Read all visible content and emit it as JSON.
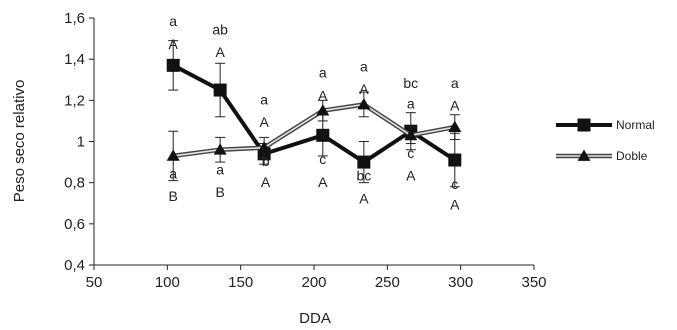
{
  "chart_data": {
    "type": "line",
    "xlabel": "DDA",
    "ylabel": "Peso seco relativo",
    "xlim": [
      50,
      350
    ],
    "ylim": [
      0.4,
      1.6
    ],
    "x_ticks": [
      "50",
      "100",
      "150",
      "200",
      "250",
      "300",
      "350"
    ],
    "y_ticks": [
      "0,4",
      "0,6",
      "0,8",
      "1",
      "1,2",
      "1,4",
      "1,6"
    ],
    "grid": false,
    "legend_position": "right",
    "series": [
      {
        "name": "Normal",
        "marker": "square",
        "style": "solid",
        "color": "#111111",
        "x": [
          104,
          136,
          166,
          206,
          234,
          266,
          296
        ],
        "y": [
          1.37,
          1.25,
          0.94,
          1.03,
          0.9,
          1.05,
          0.91
        ],
        "err": [
          0.12,
          0.13,
          0.05,
          0.1,
          0.1,
          0.09,
          0.13
        ]
      },
      {
        "name": "Doble",
        "marker": "triangle",
        "style": "double",
        "color": "#111111",
        "x": [
          104,
          136,
          166,
          206,
          234,
          266,
          296
        ],
        "y": [
          0.93,
          0.96,
          0.97,
          1.15,
          1.18,
          1.03,
          1.07
        ],
        "err": [
          0.12,
          0.06,
          0.05,
          0.05,
          0.06,
          0.04,
          0.06
        ]
      }
    ],
    "annotations": [
      {
        "text": "a",
        "x": 104,
        "y": 1.56
      },
      {
        "text": "A",
        "x": 104,
        "y": 1.45
      },
      {
        "text": "ab",
        "x": 136,
        "y": 1.52
      },
      {
        "text": "A",
        "x": 136,
        "y": 1.41
      },
      {
        "text": "a",
        "x": 166,
        "y": 1.18
      },
      {
        "text": "A",
        "x": 166,
        "y": 1.07
      },
      {
        "text": "a",
        "x": 206,
        "y": 1.31
      },
      {
        "text": "A",
        "x": 206,
        "y": 1.2
      },
      {
        "text": "a",
        "x": 234,
        "y": 1.34
      },
      {
        "text": "A",
        "x": 234,
        "y": 1.23
      },
      {
        "text": "bc",
        "x": 266,
        "y": 1.26
      },
      {
        "text": "a",
        "x": 266,
        "y": 1.16
      },
      {
        "text": "a",
        "x": 296,
        "y": 1.26
      },
      {
        "text": "A",
        "x": 296,
        "y": 1.15
      },
      {
        "text": "a",
        "x": 104,
        "y": 0.82
      },
      {
        "text": "B",
        "x": 104,
        "y": 0.71
      },
      {
        "text": "a",
        "x": 136,
        "y": 0.84
      },
      {
        "text": "B",
        "x": 136,
        "y": 0.73
      },
      {
        "text": "b",
        "x": 167,
        "y": 0.88
      },
      {
        "text": "A",
        "x": 167,
        "y": 0.78
      },
      {
        "text": "c",
        "x": 206,
        "y": 0.89
      },
      {
        "text": "A",
        "x": 206,
        "y": 0.78
      },
      {
        "text": "bc",
        "x": 234,
        "y": 0.81
      },
      {
        "text": "A",
        "x": 234,
        "y": 0.7
      },
      {
        "text": "c",
        "x": 266,
        "y": 0.92
      },
      {
        "text": "A",
        "x": 266,
        "y": 0.81
      },
      {
        "text": "c",
        "x": 296,
        "y": 0.77
      },
      {
        "text": "A",
        "x": 296,
        "y": 0.67
      }
    ]
  }
}
